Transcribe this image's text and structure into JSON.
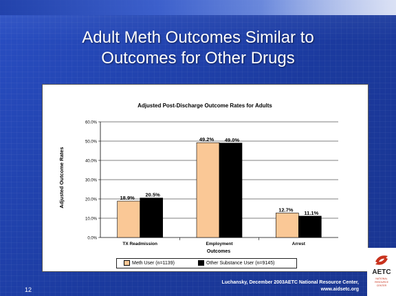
{
  "slide": {
    "title_line1": "Adult Meth Outcomes Similar to",
    "title_line2": "Outcomes for Other Drugs",
    "number": "12",
    "credit_line1": "Luchansky, December 2003AETC National Resource Center,",
    "credit_line2": "www.aidsetc.org"
  },
  "logo": {
    "name": "AETC",
    "sub_line1": "NATIONAL",
    "sub_line2": "RESOURCE",
    "sub_line3": "CENTER"
  },
  "colors": {
    "background": "#1f3fa8",
    "meth_series": "#fac896",
    "other_series": "#000000",
    "logo_red": "#c8321d"
  },
  "chart_data": {
    "type": "bar",
    "title": "Adjusted Post-Discharge Outcome Rates for Adults",
    "xlabel": "Outcomes",
    "ylabel": "Adjusted Outcome Rates",
    "categories": [
      "TX Readmission",
      "Employment",
      "Arrest"
    ],
    "series": [
      {
        "name": "Meth User (n=1139)",
        "values": [
          18.9,
          49.2,
          12.7
        ],
        "labels": [
          "18.9%",
          "49.2%",
          "12.7%"
        ]
      },
      {
        "name": "Other Substance User (n=9145)",
        "values": [
          20.5,
          49.0,
          11.1
        ],
        "labels": [
          "20.5%",
          "49.0%",
          "11.1%"
        ]
      }
    ],
    "yticks": [
      "0.0%",
      "10.0%",
      "20.0%",
      "30.0%",
      "40.0%",
      "50.0%",
      "60.0%"
    ],
    "ylim": [
      0,
      60
    ],
    "grid": true,
    "legend_position": "bottom"
  }
}
